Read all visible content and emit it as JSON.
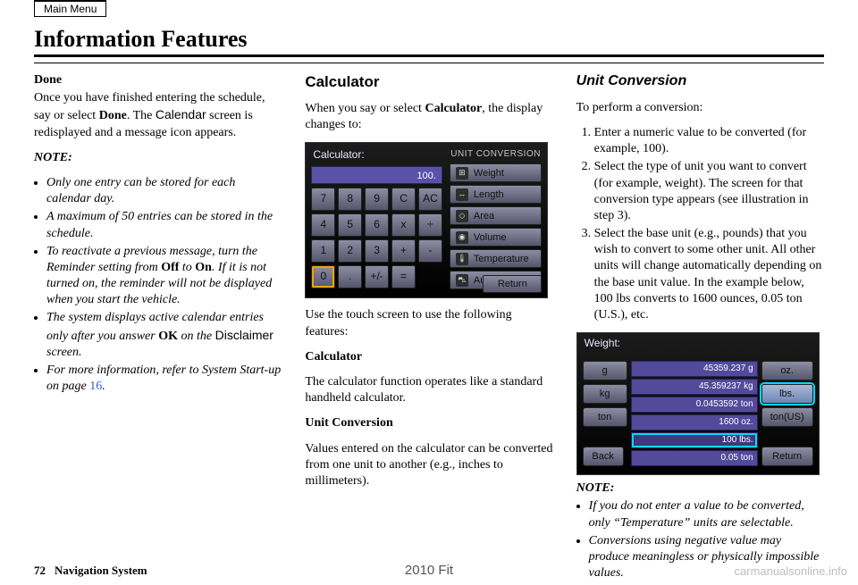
{
  "header": {
    "menu_button": "Main Menu",
    "page_title": "Information Features"
  },
  "col1": {
    "done_heading": "Done",
    "done_body_1": "Once you have finished entering the schedule, say or select ",
    "done_bold": "Done",
    "done_body_2": ". The ",
    "done_sans": "Calendar",
    "done_body_3": " screen is redisplayed and a message icon appears.",
    "note_label": "NOTE:",
    "notes": [
      "Only one entry can be stored for each calendar day.",
      "A maximum of 50 entries can be stored in the schedule.",
      "To reactivate a previous message, turn the Reminder setting from <b>Off</b> to <b>On</b>. If it is not turned on, the reminder will not be displayed when you start the vehicle.",
      "The system displays active calendar entries only after you answer <b>OK</b> on the <sans>Disclaimer</sans> screen.",
      "For more information, refer to System Start-up on page <link>16</link>."
    ]
  },
  "col2": {
    "section": "Calculator",
    "intro_1": "When you say or select ",
    "intro_b": "Calculator",
    "intro_2": ", the display changes to:",
    "calc": {
      "title": "Calculator:",
      "display_value": "100.",
      "keys": [
        [
          "7",
          "8",
          "9",
          "C",
          "AC"
        ],
        [
          "4",
          "5",
          "6",
          "x",
          "÷"
        ],
        [
          "1",
          "2",
          "3",
          "+",
          "-"
        ],
        [
          "0",
          ".",
          "+/-",
          "=",
          ""
        ]
      ],
      "selected_key": "0",
      "conv_title": "UNIT  CONVERSION",
      "conv_rows": [
        {
          "icon": "⊞",
          "label": "Weight"
        },
        {
          "icon": "↔",
          "label": "Length"
        },
        {
          "icon": "◇",
          "label": "Area"
        },
        {
          "icon": "◉",
          "label": "Volume"
        },
        {
          "icon": "🌡",
          "label": "Temperature"
        },
        {
          "icon": "⛍",
          "label": "Automotive"
        }
      ],
      "return": "Return"
    },
    "after_img": "Use the touch screen to use the following features:",
    "calc_sub": "Calculator",
    "calc_sub_body": "The calculator function operates like a standard handheld calculator.",
    "unit_sub": "Unit Conversion",
    "unit_sub_body": "Values entered on the calculator can be converted from one unit to another (e.g., inches to millimeters)."
  },
  "col3": {
    "section": "Unit Conversion",
    "intro": "To perform a conversion:",
    "steps": [
      "Enter a numeric value to be converted (for example, 100).",
      "Select the type of unit you want to convert (for example, weight). The screen for that conversion type appears (see illustration in step 3).",
      "Select the base unit (e.g., pounds) that you wish to convert to some other unit. All other units will change automatically depending on the base unit value. In the example below, 100 lbs converts to 1600 ounces, 0.05 ton (U.S.), etc."
    ],
    "weight": {
      "title": "Weight:",
      "left_units": [
        "g",
        "kg",
        "ton"
      ],
      "right_units": [
        "oz.",
        "lbs.",
        "ton(US)"
      ],
      "highlight_unit": "lbs.",
      "rows": [
        {
          "v": "45359.237",
          "u": "g"
        },
        {
          "v": "45.359237",
          "u": "kg"
        },
        {
          "v": "0.0453592",
          "u": "ton"
        },
        {
          "v": "1600",
          "u": "oz."
        },
        {
          "v": "100",
          "u": "lbs.",
          "hl": true
        },
        {
          "v": "0.05",
          "u": "ton"
        }
      ],
      "back": "Back",
      "return": "Return"
    },
    "note_label": "NOTE:",
    "notes2": [
      "If you do not enter a value to be converted, only “Temperature” units are selectable.",
      "Conversions using negative value may produce meaningless or physically impossible values."
    ]
  },
  "footer": {
    "page_num": "72",
    "system": "Navigation System",
    "model": "2010 Fit",
    "watermark": "carmanualsonline.info"
  },
  "colors": {
    "text": "#000000",
    "link": "#2a5fd0",
    "screen_bg": "#000000",
    "panel_purple": "#5a52a8",
    "btn_grad_top": "#8c8ca2",
    "btn_grad_bot": "#55556b",
    "highlight_orange": "#eea500",
    "highlight_cyan": "#00d9ff",
    "watermark": "#bdbdbd"
  }
}
